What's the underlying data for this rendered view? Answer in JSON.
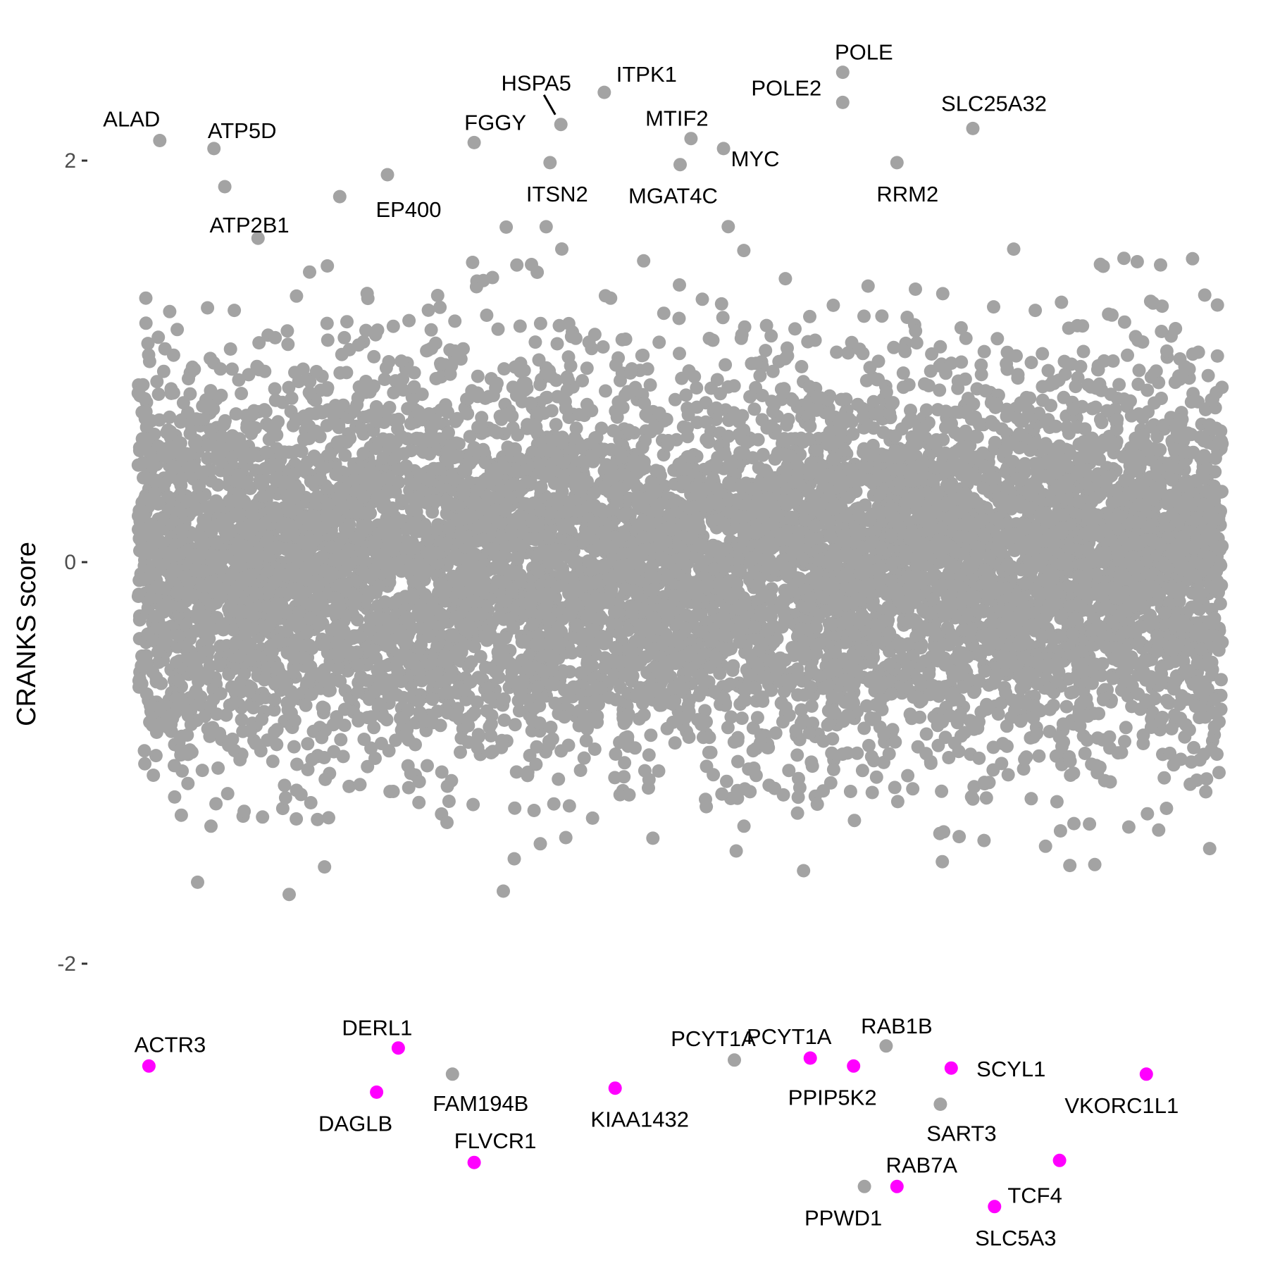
{
  "colors": {
    "background": "#ffffff",
    "point_default": "#a3a3a3",
    "point_highlight": "#ff00ff",
    "tick": "#333333",
    "tick_label": "#4d4d4d",
    "text": "#000000"
  },
  "chart_data": {
    "type": "scatter",
    "title": "",
    "xlabel": "",
    "ylabel": "CRANKS score",
    "ylim": [
      -3.2,
      2.5
    ],
    "y_ticks": [
      {
        "value": 2,
        "label": "2"
      },
      {
        "value": 0,
        "label": "0"
      },
      {
        "value": -2,
        "label": "-2"
      }
    ],
    "x_axis_visible": false,
    "grid": false,
    "legend": "none",
    "background_cloud": {
      "description": "approximately 18000 unlabeled gene points (grey), dense between about -1.2 and 1.2",
      "color": "#a3a3a3",
      "y_core_range": [
        -1.2,
        1.2
      ]
    },
    "series": [
      {
        "color": "#a3a3a3",
        "points": [
          {
            "x": 0.02,
            "y": 2.1,
            "label": "ALAD"
          },
          {
            "x": 0.07,
            "y": 2.06,
            "label": "ATP5D"
          },
          {
            "x": 0.08,
            "y": 1.87,
            "label": "ATP2B1"
          },
          {
            "x": 0.23,
            "y": 1.93,
            "label": "EP400"
          },
          {
            "x": 0.31,
            "y": 2.09,
            "label": "FGGY"
          },
          {
            "x": 0.39,
            "y": 2.18,
            "label": "HSPA5"
          },
          {
            "x": 0.43,
            "y": 2.34,
            "label": "ITPK1"
          },
          {
            "x": 0.38,
            "y": 1.99,
            "label": "ITSN2"
          },
          {
            "x": 0.51,
            "y": 2.11,
            "label": "MTIF2"
          },
          {
            "x": 0.5,
            "y": 1.98,
            "label": "MGAT4C"
          },
          {
            "x": 0.54,
            "y": 2.06,
            "label": "MYC"
          },
          {
            "x": 0.65,
            "y": 2.29,
            "label": "POLE2"
          },
          {
            "x": 0.65,
            "y": 2.44,
            "label": "POLE"
          },
          {
            "x": 0.77,
            "y": 2.16,
            "label": "SLC25A32"
          },
          {
            "x": 0.7,
            "y": 1.99,
            "label": "RRM2"
          },
          {
            "x": 0.55,
            "y": -2.48,
            "label": "PCYT1A"
          },
          {
            "x": 0.69,
            "y": -2.41,
            "label": "RAB1B"
          },
          {
            "x": 0.74,
            "y": -2.7,
            "label": "SART3"
          },
          {
            "x": 0.67,
            "y": -3.11,
            "label": "PPWD1"
          },
          {
            "x": 0.29,
            "y": -2.55,
            "label": "FAM194B"
          }
        ]
      },
      {
        "color": "#ff00ff",
        "points": [
          {
            "x": 0.01,
            "y": -2.51,
            "label": "ACTR3"
          },
          {
            "x": 0.24,
            "y": -2.42,
            "label": "DERL1"
          },
          {
            "x": 0.22,
            "y": -2.64,
            "label": "DAGLB"
          },
          {
            "x": 0.31,
            "y": -2.99,
            "label": "FLVCR1"
          },
          {
            "x": 0.44,
            "y": -2.62,
            "label": "KIAA1432"
          },
          {
            "x": 0.62,
            "y": -2.47,
            "label": "PCYT1A"
          },
          {
            "x": 0.66,
            "y": -2.51,
            "label": "PPIP5K2"
          },
          {
            "x": 0.75,
            "y": -2.52,
            "label": "SCYL1"
          },
          {
            "x": 0.93,
            "y": -2.55,
            "label": "VKORC1L1"
          },
          {
            "x": 0.85,
            "y": -2.98,
            "label": "TCF4"
          },
          {
            "x": 0.7,
            "y": -3.11,
            "label": "RAB7A"
          },
          {
            "x": 0.79,
            "y": -3.21,
            "label": "SLC5A3"
          }
        ]
      }
    ]
  }
}
